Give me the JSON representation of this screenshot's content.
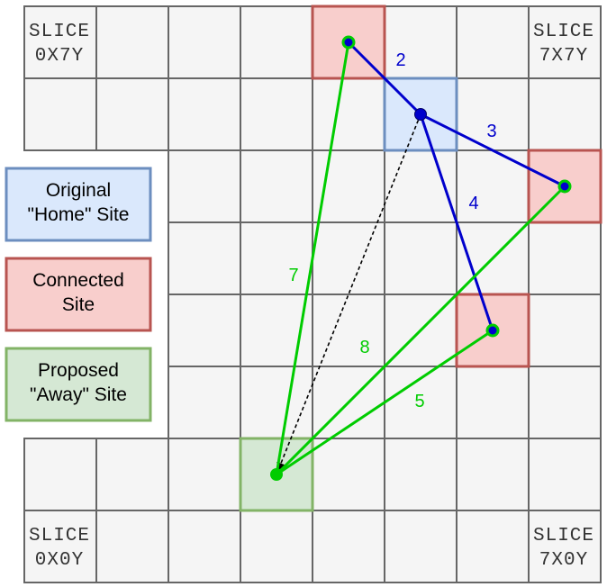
{
  "corner_labels": {
    "top_left": [
      "SLICE",
      "0X7Y"
    ],
    "top_right": [
      "SLICE",
      "7X7Y"
    ],
    "bottom_left": [
      "SLICE",
      "0X0Y"
    ],
    "bottom_right": [
      "SLICE",
      "7X0Y"
    ]
  },
  "legend": {
    "home": {
      "lines": [
        "Original",
        "\"Home\" Site"
      ],
      "fill": "#dae8fc",
      "stroke": "#6c8ebf"
    },
    "connected": {
      "lines": [
        "Connected",
        "Site"
      ],
      "fill": "#f8cecc",
      "stroke": "#b85450"
    },
    "away": {
      "lines": [
        "Proposed",
        "\"Away\" Site"
      ],
      "fill": "#d5e8d4",
      "stroke": "#82b366"
    }
  },
  "edges": {
    "home_edges": [
      {
        "label": "2",
        "color": "#0000cc"
      },
      {
        "label": "3",
        "color": "#0000cc"
      },
      {
        "label": "4",
        "color": "#0000cc"
      }
    ],
    "away_edges": [
      {
        "label": "7",
        "color": "#00cc00"
      },
      {
        "label": "8",
        "color": "#00cc00"
      },
      {
        "label": "5",
        "color": "#00cc00"
      }
    ]
  },
  "colors": {
    "home_edge": "#0000cc",
    "away_edge": "#00cc00",
    "move_arrow": "#000000"
  }
}
